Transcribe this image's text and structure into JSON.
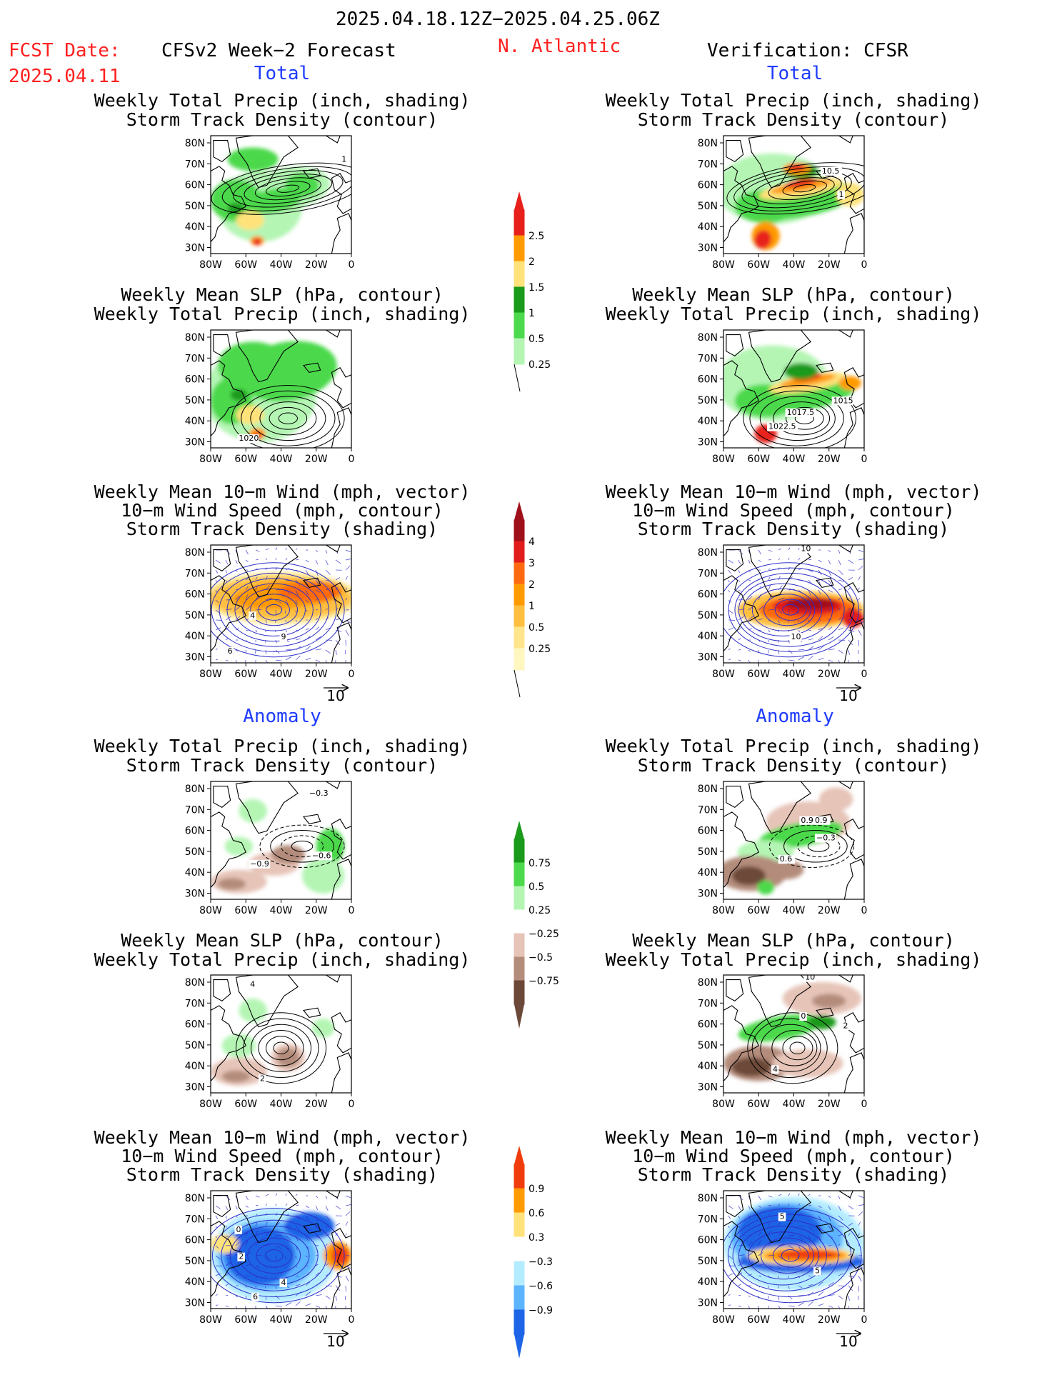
{
  "header": {
    "date_range": "2025.04.18.12Z−2025.04.25.06Z",
    "fcst_label": "FCST Date:",
    "fcst_date": "2025.04.11",
    "left_title": "CFSv2 Week−2 Forecast",
    "region": "N. Atlantic",
    "right_title": "Verification: CFSR"
  },
  "sections": {
    "total": "Total",
    "anomaly": "Anomaly"
  },
  "panel_titles": {
    "precip_storm": [
      "Weekly Total Precip (inch, shading)",
      "Storm Track Density (contour)"
    ],
    "slp_precip": [
      "Weekly Mean SLP (hPa, contour)",
      "Weekly Total Precip (inch, shading)"
    ],
    "wind_storm": [
      "Weekly Mean 10−m Wind (mph, vector)",
      "10−m Wind Speed (mph, contour)",
      "Storm Track Density (shading)"
    ]
  },
  "axes": {
    "lat_labels": [
      "80N",
      "70N",
      "60N",
      "50N",
      "40N",
      "30N"
    ],
    "lon_labels": [
      "80W",
      "60W",
      "40W",
      "20W",
      "0"
    ]
  },
  "vector_ref": "10",
  "contour_labels": {
    "p1": [
      "1"
    ],
    "p2": [
      "1020"
    ],
    "p4": [
      "10.5",
      "1"
    ],
    "p5": [
      "1017.5",
      "1015",
      "1022.5"
    ],
    "p3": [
      "4",
      "6",
      "9"
    ],
    "p6": [
      "10",
      "10"
    ],
    "p7": [
      "−0.3",
      "−0.6",
      "−0.9"
    ],
    "p8": [
      "4",
      "2"
    ],
    "p9": [
      "2",
      "4",
      "0",
      "6"
    ],
    "p10": [
      "0.9",
      "0.9",
      "−0.3",
      "0.6"
    ],
    "p11": [
      "10",
      "0",
      "2",
      "4"
    ],
    "p12": [
      "5",
      "5"
    ]
  },
  "colorbars": {
    "precip_total": {
      "labels": [
        "2.5",
        "2",
        "1.5",
        "1",
        "0.5",
        "0.25"
      ],
      "colors": [
        "#e8201c",
        "#ff9a00",
        "#ffe27a",
        "#1a9a1a",
        "#4cd94c",
        "#b4f5b4"
      ]
    },
    "storm_total": {
      "labels": [
        "4",
        "3",
        "2",
        "1",
        "0.5",
        "0.25"
      ],
      "colors": [
        "#a0101a",
        "#e01c1c",
        "#ff6a10",
        "#ff9a00",
        "#ffbf40",
        "#ffe68c",
        "#fff6c0"
      ]
    },
    "precip_anom": {
      "labels": [
        "0.75",
        "0.5",
        "0.25",
        "−0.25",
        "−0.5",
        "−0.75"
      ],
      "colors": [
        "#1a9a1a",
        "#4cd94c",
        "#b4f5b4",
        "#ffffff",
        "#e6c4b8",
        "#b48c7c",
        "#6c4838"
      ]
    },
    "storm_anom": {
      "labels": [
        "0.9",
        "0.6",
        "0.3",
        "−0.3",
        "−0.6",
        "−0.9"
      ],
      "colors": [
        "#f03c0c",
        "#ff9a00",
        "#ffe27a",
        "#ffffff",
        "#b4ecff",
        "#5cb4ff",
        "#1e64e6"
      ]
    }
  }
}
